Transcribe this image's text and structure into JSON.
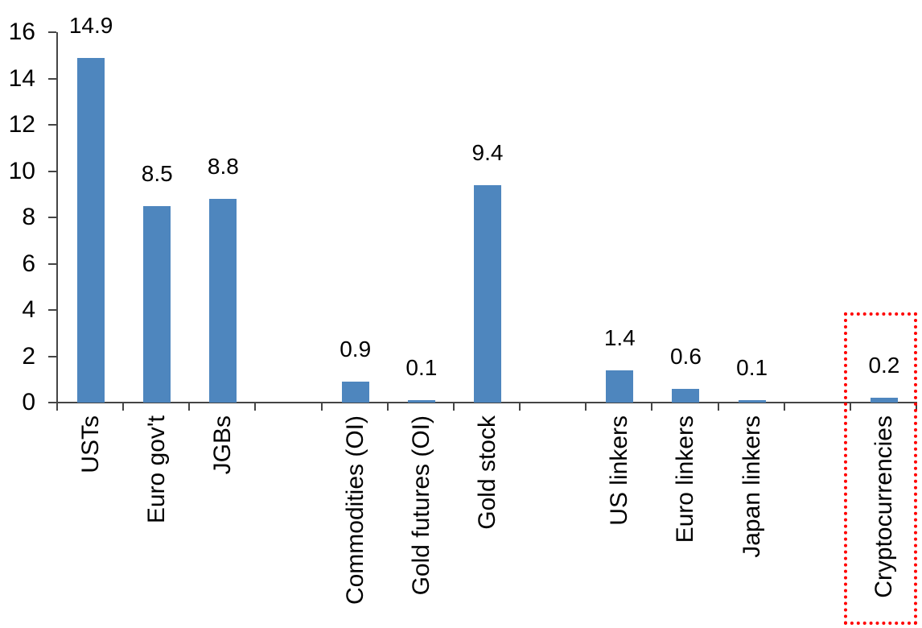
{
  "chart_data": {
    "type": "bar",
    "title": "",
    "xlabel": "",
    "ylabel": "",
    "categories": [
      "USTs",
      "Euro gov't",
      "JGBs",
      "Commodities (OI)",
      "Gold futures (OI)",
      "Gold stock",
      "US linkers",
      "Euro linkers",
      "Japan linkers",
      "Cryptocurrencies"
    ],
    "values": [
      14.9,
      8.5,
      8.8,
      0.9,
      0.1,
      9.4,
      1.4,
      0.6,
      0.1,
      0.2
    ],
    "data_labels": [
      "14.9",
      "8.5",
      "8.8",
      "0.9",
      "0.1",
      "9.4",
      "1.4",
      "0.6",
      "0.1",
      "0.2"
    ],
    "slots": [
      0,
      1,
      2,
      4,
      5,
      6,
      8,
      9,
      10,
      12
    ],
    "total_slots": 13,
    "ylim": [
      0,
      16
    ],
    "ytick_step": 2,
    "ytick_labels": [
      "0",
      "2",
      "4",
      "6",
      "8",
      "10",
      "12",
      "14",
      "16"
    ],
    "grid": false,
    "legend_position": "none",
    "bar_color": "#4E86BE",
    "axis_color": "#454545",
    "text_color": "#000000",
    "highlight": {
      "category": "Cryptocurrencies",
      "style": "dotted-box",
      "color": "#FF0000"
    }
  }
}
